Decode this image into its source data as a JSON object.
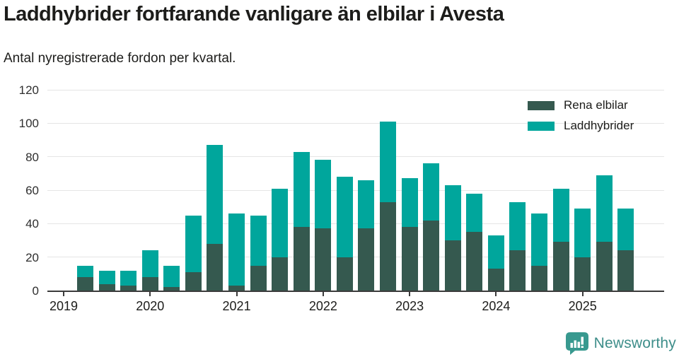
{
  "header": {
    "title": "Laddhybrider fortfarande vanligare än elbilar i Avesta",
    "subtitle": "Antal nyregistrerade fordon per kvartal."
  },
  "legend": {
    "items": [
      {
        "label": "Rena elbilar",
        "color": "#35594f"
      },
      {
        "label": "Laddhybrider",
        "color": "#00a69c"
      }
    ]
  },
  "brand": {
    "name": "Newsworthy",
    "text_color": "#3e8e8a",
    "icon": "newsworthy-speech-bubble-chart-icon",
    "icon_color": "#38998f"
  },
  "chart_data": {
    "type": "bar",
    "stacked": true,
    "title": "Laddhybrider fortfarande vanligare än elbilar i Avesta",
    "subtitle": "Antal nyregistrerade fordon per kvartal.",
    "xlabel": "",
    "ylabel": "",
    "x": [
      "2019 Q1",
      "2019 Q2",
      "2019 Q3",
      "2019 Q4",
      "2020 Q1",
      "2020 Q2",
      "2020 Q3",
      "2020 Q4",
      "2021 Q1",
      "2021 Q2",
      "2021 Q3",
      "2021 Q4",
      "2022 Q1",
      "2022 Q2",
      "2022 Q3",
      "2022 Q4",
      "2023 Q1",
      "2023 Q2",
      "2023 Q3",
      "2023 Q4",
      "2024 Q1",
      "2024 Q2",
      "2024 Q3",
      "2024 Q4",
      "2025 Q1",
      "2025 Q2",
      "2025 Q3"
    ],
    "x_axis_tick_labels": [
      "2019",
      "2020",
      "2021",
      "2022",
      "2023",
      "2024",
      "2025"
    ],
    "series": [
      {
        "name": "Rena elbilar",
        "color": "#35594f",
        "values": [
          0,
          8,
          4,
          3,
          8,
          2,
          11,
          28,
          3,
          15,
          20,
          38,
          37,
          20,
          37,
          53,
          38,
          42,
          30,
          35,
          13,
          24,
          15,
          29,
          20,
          29,
          24
        ]
      },
      {
        "name": "Laddhybrider",
        "color": "#00a69c",
        "values": [
          0,
          7,
          8,
          9,
          16,
          13,
          34,
          59,
          43,
          30,
          41,
          45,
          41,
          48,
          29,
          48,
          29,
          34,
          33,
          23,
          20,
          29,
          31,
          32,
          29,
          40,
          25
        ]
      }
    ],
    "totals": [
      0,
      15,
      12,
      12,
      24,
      15,
      45,
      87,
      46,
      45,
      61,
      83,
      78,
      68,
      66,
      101,
      67,
      76,
      63,
      58,
      33,
      53,
      46,
      61,
      49,
      69,
      49
    ],
    "ylim": [
      0,
      120
    ],
    "yticks": [
      0,
      20,
      40,
      60,
      80,
      100,
      120
    ],
    "grid": true,
    "legend_position": "top-right",
    "colors": {
      "axis_line": "#3b3b3b",
      "gridline": "#e5e5e5",
      "label_text": "#1d1d1b"
    }
  }
}
